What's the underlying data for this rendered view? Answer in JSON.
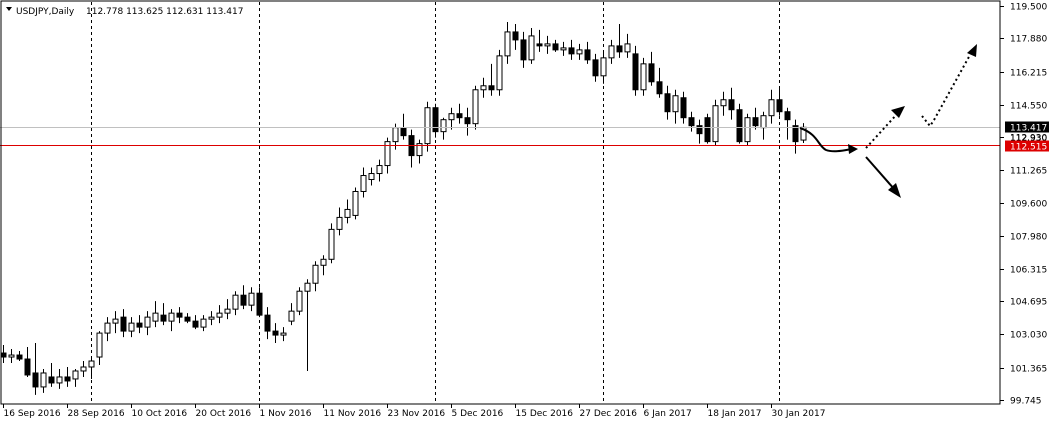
{
  "header": {
    "symbol": "USDJPY,Daily",
    "ohlc": "112.778 113.625 112.631 113.417"
  },
  "colors": {
    "background": "#ffffff",
    "grid": "#c8c8c8",
    "candle": "#000000",
    "current_price_line": "#c0c0c0",
    "red_line": "#dd0000",
    "label_dark": "#000000",
    "label_red": "#dd0000"
  },
  "chart_data": {
    "type": "candlestick",
    "title": "USDJPY,Daily",
    "ylim": [
      99.745,
      119.5
    ],
    "y_ticks": [
      "119.500",
      "117.880",
      "116.215",
      "114.550",
      "112.930",
      "111.265",
      "109.600",
      "107.980",
      "106.315",
      "104.695",
      "103.030",
      "101.365",
      "99.745"
    ],
    "x_labels": [
      "16 Sep 2016",
      "28 Sep 2016",
      "10 Oct 2016",
      "20 Oct 2016",
      "1 Nov 2016",
      "11 Nov 2016",
      "23 Nov 2016",
      "5 Dec 2016",
      "15 Dec 2016",
      "27 Dec 2016",
      "6 Jan 2017",
      "18 Jan 2017",
      "30 Jan 2017"
    ],
    "x_label_bar_index": [
      0,
      8,
      16,
      24,
      32,
      40,
      48,
      56,
      64,
      72,
      80,
      88,
      96
    ],
    "period_separators_bar_index": [
      11,
      32,
      54,
      75,
      97
    ],
    "current_price": "113.417",
    "hidden_label": "112.930",
    "horizontal_line": "112.515",
    "candles": [
      {
        "o": 102.1,
        "h": 102.5,
        "l": 101.6,
        "c": 101.9
      },
      {
        "o": 101.9,
        "h": 102.3,
        "l": 101.6,
        "c": 102.0
      },
      {
        "o": 102.0,
        "h": 102.2,
        "l": 101.7,
        "c": 101.8
      },
      {
        "o": 101.8,
        "h": 102.4,
        "l": 100.9,
        "c": 101.0
      },
      {
        "o": 101.1,
        "h": 102.6,
        "l": 100.0,
        "c": 100.4
      },
      {
        "o": 100.4,
        "h": 101.3,
        "l": 100.1,
        "c": 101.1
      },
      {
        "o": 100.9,
        "h": 101.6,
        "l": 100.4,
        "c": 100.6
      },
      {
        "o": 100.6,
        "h": 101.3,
        "l": 100.3,
        "c": 100.9
      },
      {
        "o": 100.9,
        "h": 101.4,
        "l": 100.4,
        "c": 100.7
      },
      {
        "o": 100.8,
        "h": 101.3,
        "l": 100.4,
        "c": 101.2
      },
      {
        "o": 101.2,
        "h": 101.7,
        "l": 100.9,
        "c": 101.4
      },
      {
        "o": 101.4,
        "h": 101.9,
        "l": 100.8,
        "c": 101.7
      },
      {
        "o": 101.9,
        "h": 103.2,
        "l": 101.5,
        "c": 103.1
      },
      {
        "o": 103.1,
        "h": 103.9,
        "l": 102.7,
        "c": 103.6
      },
      {
        "o": 103.6,
        "h": 104.2,
        "l": 103.1,
        "c": 103.8
      },
      {
        "o": 103.9,
        "h": 104.3,
        "l": 102.9,
        "c": 103.2
      },
      {
        "o": 103.2,
        "h": 103.9,
        "l": 102.9,
        "c": 103.6
      },
      {
        "o": 103.6,
        "h": 104.0,
        "l": 103.1,
        "c": 103.4
      },
      {
        "o": 103.4,
        "h": 104.2,
        "l": 103.0,
        "c": 103.9
      },
      {
        "o": 103.7,
        "h": 104.7,
        "l": 103.4,
        "c": 104.1
      },
      {
        "o": 104.0,
        "h": 104.6,
        "l": 103.5,
        "c": 103.7
      },
      {
        "o": 103.7,
        "h": 104.3,
        "l": 103.2,
        "c": 104.1
      },
      {
        "o": 104.1,
        "h": 104.4,
        "l": 103.6,
        "c": 103.9
      },
      {
        "o": 103.9,
        "h": 104.1,
        "l": 103.6,
        "c": 103.7
      },
      {
        "o": 103.7,
        "h": 104.0,
        "l": 103.3,
        "c": 103.4
      },
      {
        "o": 103.4,
        "h": 104.0,
        "l": 103.2,
        "c": 103.8
      },
      {
        "o": 103.8,
        "h": 104.2,
        "l": 103.5,
        "c": 103.9
      },
      {
        "o": 103.9,
        "h": 104.5,
        "l": 103.6,
        "c": 104.1
      },
      {
        "o": 104.1,
        "h": 104.8,
        "l": 103.8,
        "c": 104.3
      },
      {
        "o": 104.3,
        "h": 105.2,
        "l": 104.0,
        "c": 105.0
      },
      {
        "o": 105.0,
        "h": 105.5,
        "l": 104.3,
        "c": 104.5
      },
      {
        "o": 104.5,
        "h": 105.4,
        "l": 104.2,
        "c": 105.1
      },
      {
        "o": 105.1,
        "h": 105.4,
        "l": 103.9,
        "c": 104.0
      },
      {
        "o": 104.0,
        "h": 104.4,
        "l": 102.8,
        "c": 103.2
      },
      {
        "o": 103.2,
        "h": 103.6,
        "l": 102.6,
        "c": 103.0
      },
      {
        "o": 103.0,
        "h": 103.4,
        "l": 102.7,
        "c": 103.1
      },
      {
        "o": 103.7,
        "h": 104.6,
        "l": 103.5,
        "c": 104.2
      },
      {
        "o": 104.2,
        "h": 105.4,
        "l": 104.0,
        "c": 105.2
      },
      {
        "o": 105.2,
        "h": 105.8,
        "l": 101.2,
        "c": 105.6
      },
      {
        "o": 105.6,
        "h": 106.7,
        "l": 105.2,
        "c": 106.5
      },
      {
        "o": 106.5,
        "h": 107.0,
        "l": 106.0,
        "c": 106.8
      },
      {
        "o": 106.8,
        "h": 108.6,
        "l": 106.6,
        "c": 108.3
      },
      {
        "o": 108.3,
        "h": 109.4,
        "l": 108.0,
        "c": 108.9
      },
      {
        "o": 108.9,
        "h": 109.8,
        "l": 108.6,
        "c": 109.3
      },
      {
        "o": 109.0,
        "h": 110.4,
        "l": 108.8,
        "c": 110.2
      },
      {
        "o": 110.2,
        "h": 111.4,
        "l": 109.9,
        "c": 111.0
      },
      {
        "o": 110.8,
        "h": 111.4,
        "l": 110.5,
        "c": 111.1
      },
      {
        "o": 111.1,
        "h": 111.8,
        "l": 110.7,
        "c": 111.5
      },
      {
        "o": 111.5,
        "h": 112.9,
        "l": 111.1,
        "c": 112.7
      },
      {
        "o": 112.7,
        "h": 113.6,
        "l": 112.3,
        "c": 113.4
      },
      {
        "o": 113.4,
        "h": 114.1,
        "l": 112.8,
        "c": 113.0
      },
      {
        "o": 113.0,
        "h": 113.3,
        "l": 111.4,
        "c": 112.0
      },
      {
        "o": 112.0,
        "h": 112.8,
        "l": 111.6,
        "c": 112.6
      },
      {
        "o": 112.6,
        "h": 114.7,
        "l": 112.2,
        "c": 114.4
      },
      {
        "o": 114.4,
        "h": 114.6,
        "l": 112.9,
        "c": 113.2
      },
      {
        "o": 113.2,
        "h": 113.9,
        "l": 112.8,
        "c": 113.8
      },
      {
        "o": 113.8,
        "h": 114.4,
        "l": 113.3,
        "c": 114.1
      },
      {
        "o": 114.1,
        "h": 114.6,
        "l": 113.6,
        "c": 113.9
      },
      {
        "o": 113.9,
        "h": 114.4,
        "l": 113.0,
        "c": 113.6
      },
      {
        "o": 113.6,
        "h": 115.5,
        "l": 113.3,
        "c": 115.3
      },
      {
        "o": 115.3,
        "h": 115.9,
        "l": 114.9,
        "c": 115.5
      },
      {
        "o": 115.5,
        "h": 116.6,
        "l": 115.0,
        "c": 115.3
      },
      {
        "o": 115.3,
        "h": 117.3,
        "l": 115.0,
        "c": 117.0
      },
      {
        "o": 117.0,
        "h": 118.7,
        "l": 116.6,
        "c": 118.2
      },
      {
        "o": 118.2,
        "h": 118.6,
        "l": 117.3,
        "c": 117.8
      },
      {
        "o": 117.8,
        "h": 118.2,
        "l": 116.4,
        "c": 116.8
      },
      {
        "o": 116.8,
        "h": 118.4,
        "l": 116.6,
        "c": 118.0
      },
      {
        "o": 117.6,
        "h": 118.3,
        "l": 117.2,
        "c": 117.5
      },
      {
        "o": 117.5,
        "h": 118.0,
        "l": 117.1,
        "c": 117.6
      },
      {
        "o": 117.6,
        "h": 117.8,
        "l": 117.2,
        "c": 117.3
      },
      {
        "o": 117.3,
        "h": 117.7,
        "l": 117.0,
        "c": 117.4
      },
      {
        "o": 117.4,
        "h": 117.8,
        "l": 116.8,
        "c": 117.1
      },
      {
        "o": 117.1,
        "h": 117.6,
        "l": 116.8,
        "c": 117.3
      },
      {
        "o": 117.3,
        "h": 117.7,
        "l": 116.6,
        "c": 116.8
      },
      {
        "o": 116.8,
        "h": 117.1,
        "l": 115.7,
        "c": 116.0
      },
      {
        "o": 116.0,
        "h": 117.2,
        "l": 115.6,
        "c": 116.9
      },
      {
        "o": 116.9,
        "h": 117.8,
        "l": 116.6,
        "c": 117.5
      },
      {
        "o": 117.5,
        "h": 118.6,
        "l": 116.9,
        "c": 117.2
      },
      {
        "o": 117.2,
        "h": 118.1,
        "l": 116.9,
        "c": 117.6
      },
      {
        "o": 117.1,
        "h": 117.5,
        "l": 115.0,
        "c": 115.3
      },
      {
        "o": 115.3,
        "h": 116.9,
        "l": 115.0,
        "c": 116.6
      },
      {
        "o": 116.6,
        "h": 117.2,
        "l": 115.5,
        "c": 115.7
      },
      {
        "o": 115.7,
        "h": 116.4,
        "l": 114.9,
        "c": 115.1
      },
      {
        "o": 115.1,
        "h": 115.5,
        "l": 113.8,
        "c": 114.2
      },
      {
        "o": 114.2,
        "h": 115.3,
        "l": 113.6,
        "c": 115.0
      },
      {
        "o": 114.9,
        "h": 115.2,
        "l": 113.6,
        "c": 113.9
      },
      {
        "o": 113.9,
        "h": 114.2,
        "l": 113.2,
        "c": 113.5
      },
      {
        "o": 113.5,
        "h": 113.8,
        "l": 112.6,
        "c": 113.1
      },
      {
        "o": 113.9,
        "h": 114.1,
        "l": 112.6,
        "c": 112.7
      },
      {
        "o": 112.7,
        "h": 114.8,
        "l": 112.5,
        "c": 114.5
      },
      {
        "o": 114.5,
        "h": 115.2,
        "l": 114.0,
        "c": 114.8
      },
      {
        "o": 114.8,
        "h": 115.4,
        "l": 113.8,
        "c": 114.3
      },
      {
        "o": 114.3,
        "h": 114.6,
        "l": 112.6,
        "c": 112.7
      },
      {
        "o": 112.7,
        "h": 114.1,
        "l": 112.5,
        "c": 113.9
      },
      {
        "o": 113.9,
        "h": 114.4,
        "l": 113.3,
        "c": 113.5
      },
      {
        "o": 113.4,
        "h": 114.2,
        "l": 112.8,
        "c": 114.0
      },
      {
        "o": 114.0,
        "h": 115.3,
        "l": 113.6,
        "c": 114.8
      },
      {
        "o": 114.8,
        "h": 115.4,
        "l": 114.0,
        "c": 114.2
      },
      {
        "o": 114.2,
        "h": 114.4,
        "l": 112.8,
        "c": 113.8
      },
      {
        "o": 113.5,
        "h": 113.8,
        "l": 112.1,
        "c": 112.7
      },
      {
        "o": 112.778,
        "h": 113.625,
        "l": 112.631,
        "c": 113.417
      }
    ]
  }
}
